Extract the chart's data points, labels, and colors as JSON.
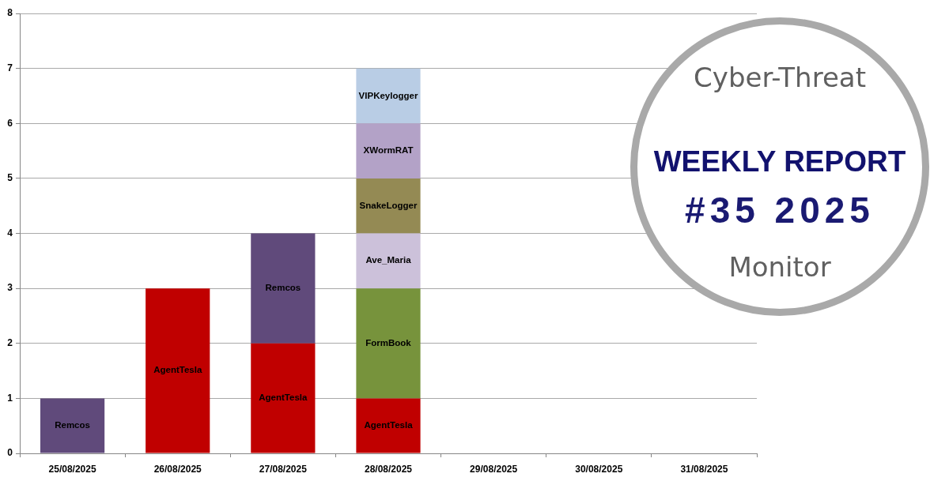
{
  "chart_data": {
    "type": "bar",
    "title": "WEEKLY REPORT",
    "subtitle": "#35 2025",
    "annotations": [
      "Cyber-Threat",
      "Monitor"
    ],
    "categories": [
      "25/08/2025",
      "26/08/2025",
      "27/08/2025",
      "28/08/2025",
      "29/08/2025",
      "30/08/2025",
      "31/08/2025"
    ],
    "series": [
      {
        "name": "AgentTesla",
        "color": "#c00000",
        "values": [
          null,
          3,
          2,
          1,
          null,
          null,
          null
        ]
      },
      {
        "name": "Remcos",
        "color": "#604a7b",
        "values": [
          1,
          null,
          2,
          null,
          null,
          null,
          null
        ]
      },
      {
        "name": "FormBook",
        "color": "#77933c",
        "values": [
          null,
          null,
          null,
          2,
          null,
          null,
          null
        ]
      },
      {
        "name": "Ave_Maria",
        "color": "#ccc1da",
        "values": [
          null,
          null,
          null,
          1,
          null,
          null,
          null
        ]
      },
      {
        "name": "SnakeLogger",
        "color": "#948a54",
        "values": [
          null,
          null,
          null,
          1,
          null,
          null,
          null
        ]
      },
      {
        "name": "XWormRAT",
        "color": "#b3a2c7",
        "values": [
          null,
          null,
          null,
          1,
          null,
          null,
          null
        ]
      },
      {
        "name": "VIPKeylogger",
        "color": "#b9cde5",
        "values": [
          null,
          null,
          null,
          1,
          null,
          null,
          null
        ]
      }
    ],
    "stacked": true,
    "ylim": [
      0,
      8
    ],
    "yticks": [
      0,
      1,
      2,
      3,
      4,
      5,
      6,
      7,
      8
    ],
    "grid": "y"
  }
}
